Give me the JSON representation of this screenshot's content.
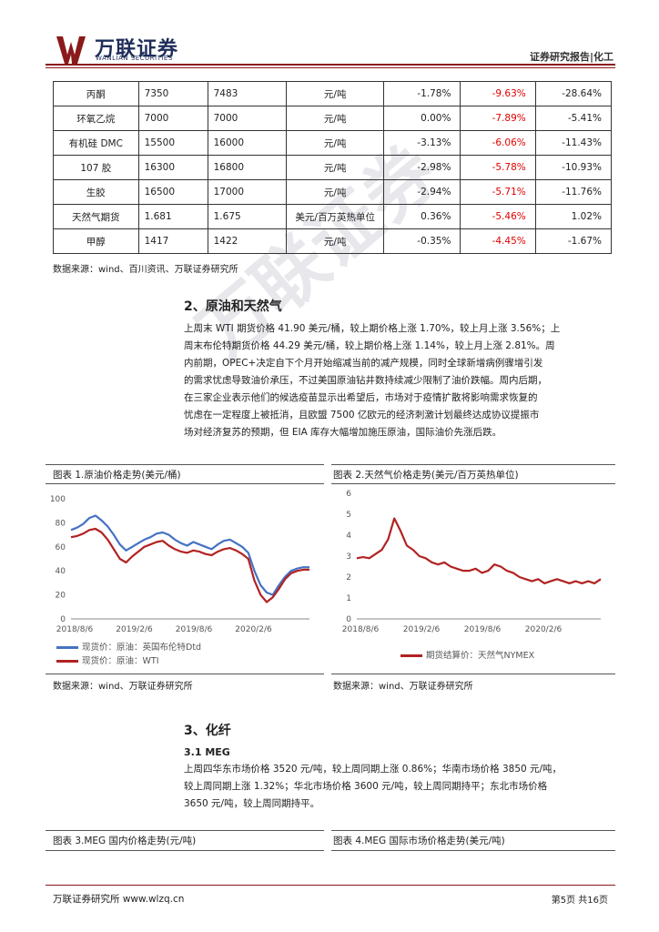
{
  "header": {
    "logo_cn": "万联证券",
    "logo_en": "WANLIAN SECURITIES",
    "report_tag": "证券研究报告|化工"
  },
  "table": {
    "rows": [
      [
        "丙酮",
        "7350",
        "7483",
        "元/吨",
        "-1.78%",
        "-9.63%",
        "-28.64%"
      ],
      [
        "环氧乙烷",
        "7000",
        "7000",
        "元/吨",
        "0.00%",
        "-7.89%",
        "-5.41%"
      ],
      [
        "有机硅 DMC",
        "15500",
        "16000",
        "元/吨",
        "-3.13%",
        "-6.06%",
        "-11.43%"
      ],
      [
        "107 胶",
        "16300",
        "16800",
        "元/吨",
        "-2.98%",
        "-5.78%",
        "-10.93%"
      ],
      [
        "生胶",
        "16500",
        "17000",
        "元/吨",
        "-2.94%",
        "-5.71%",
        "-11.76%"
      ],
      [
        "天然气期货",
        "1.681",
        "1.675",
        "美元/百万英热单位",
        "0.36%",
        "-5.46%",
        "1.02%"
      ],
      [
        "甲醇",
        "1417",
        "1422",
        "元/吨",
        "-0.35%",
        "-4.45%",
        "-1.67%"
      ]
    ],
    "source": "数据来源：wind、百川资讯、万联证券研究所"
  },
  "section2": {
    "title": "2、原油和天然气",
    "lines": [
      "上周末 WTI 期货价格 41.90 美元/桶，较上期价格上涨 1.70%，较上月上涨 3.56%；上",
      "周末布伦特期货价格 44.29 美元/桶，较上期价格上涨 1.14%，较上月上涨 2.81%。周",
      "内前期，OPEC+决定自下个月开始缩减当前的减产规模，同时全球新增病例骤增引发",
      "的需求忧虑导致油价承压，不过美国原油钻井数持续减少限制了油价跌幅。周内后期，",
      "在三家企业表示他们的候选疫苗显示出希望后，市场对于疫情扩散将影响需求恢复的",
      "忧虑在一定程度上被抵消，且欧盟 7500 亿欧元的经济刺激计划最终达成协议提振市",
      "场对经济复苏的预期，但 EIA 库存大幅增加施压原油，国际油价先涨后跌。"
    ]
  },
  "figure1": {
    "caption": "图表 1.原油价格走势(美元/桶)",
    "legend": [
      "现货价：原油：英国布伦特Dtd",
      "现货价：原油：WTI"
    ],
    "source": "数据来源：wind、万联证券研究所"
  },
  "figure2": {
    "caption": "图表 2.天然气价格走势(美元/百万英热单位)",
    "legend": [
      "期货结算价：天然气NYMEX"
    ],
    "source": "数据来源：wind、万联证券研究所"
  },
  "chart_data": [
    {
      "type": "line",
      "x_ticks": [
        "2018/8/6",
        "2019/2/6",
        "2019/8/6",
        "2020/2/6"
      ],
      "ylim": [
        0,
        100
      ],
      "y_ticks": [
        0,
        20,
        40,
        60,
        80,
        100
      ],
      "series": [
        {
          "name": "现货价：原油：英国布伦特Dtd",
          "color": "#4472c4",
          "values": [
            74,
            76,
            79,
            84,
            86,
            82,
            77,
            70,
            62,
            57,
            60,
            63,
            66,
            68,
            71,
            72,
            70,
            66,
            63,
            61,
            64,
            62,
            60,
            58,
            62,
            65,
            66,
            63,
            60,
            55,
            40,
            28,
            22,
            20,
            28,
            35,
            40,
            42,
            43,
            43
          ]
        },
        {
          "name": "现货价：原油：WTI",
          "color": "#b22222",
          "values": [
            68,
            69,
            71,
            74,
            75,
            72,
            66,
            58,
            50,
            47,
            52,
            56,
            60,
            62,
            64,
            65,
            61,
            58,
            56,
            55,
            57,
            56,
            54,
            53,
            56,
            58,
            59,
            57,
            54,
            50,
            32,
            20,
            14,
            18,
            25,
            33,
            38,
            40,
            41,
            41
          ]
        }
      ]
    },
    {
      "type": "line",
      "x_ticks": [
        "2018/8/6",
        "2019/2/6",
        "2019/8/6",
        "2020/2/6"
      ],
      "ylim": [
        0,
        6
      ],
      "y_ticks": [
        0,
        1,
        2,
        3,
        4,
        5,
        6
      ],
      "series": [
        {
          "name": "期货结算价：天然气NYMEX",
          "color": "#b22222",
          "values": [
            2.9,
            2.95,
            2.9,
            3.1,
            3.3,
            3.8,
            4.8,
            4.2,
            3.5,
            3.3,
            3.0,
            2.9,
            2.7,
            2.6,
            2.7,
            2.5,
            2.4,
            2.3,
            2.3,
            2.4,
            2.2,
            2.3,
            2.6,
            2.5,
            2.3,
            2.2,
            2.0,
            1.9,
            1.8,
            1.9,
            1.7,
            1.8,
            1.9,
            1.8,
            1.7,
            1.8,
            1.7,
            1.8,
            1.7,
            1.9
          ]
        }
      ]
    }
  ],
  "section3": {
    "title": "3、化纤",
    "sub_title": "3.1 MEG",
    "lines": [
      "上周四华东市场价格 3520 元/吨，较上周同期上涨 0.86%；华南市场价格 3850 元/吨，",
      "较上周同期上涨 1.32%；华北市场价格 3600 元/吨，较上周同期持平；东北市场价格",
      "3650 元/吨，较上周同期持平。"
    ]
  },
  "figure3": {
    "caption": "图表 3.MEG 国内价格走势(元/吨)"
  },
  "figure4": {
    "caption": "图表 4.MEG 国际市场价格走势(美元/吨)"
  },
  "watermark": "万联证券",
  "footer": {
    "left": "万联证券研究所 www.wlzq.cn",
    "right": "第5页 共16页"
  }
}
